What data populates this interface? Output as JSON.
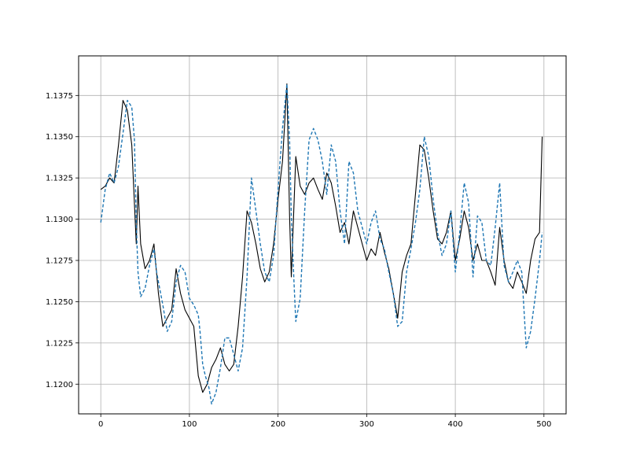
{
  "chart_data": {
    "type": "line",
    "title": "",
    "xlabel": "",
    "ylabel": "",
    "xlim": [
      -25,
      525
    ],
    "ylim": [
      1.1182,
      1.1399
    ],
    "grid": true,
    "x_ticks": [
      0,
      100,
      200,
      300,
      400,
      500
    ],
    "x_tick_labels": [
      "0",
      "100",
      "200",
      "300",
      "400",
      "500"
    ],
    "y_ticks": [
      1.12,
      1.1225,
      1.125,
      1.1275,
      1.13,
      1.1325,
      1.135,
      1.1375
    ],
    "y_tick_labels": [
      "1.1200",
      "1.1225",
      "1.1250",
      "1.1275",
      "1.1300",
      "1.1325",
      "1.1350",
      "1.1375"
    ],
    "series": [
      {
        "style": "solid",
        "color": "#000000",
        "x": [
          0,
          5,
          10,
          15,
          20,
          25,
          30,
          35,
          40,
          42,
          45,
          50,
          55,
          60,
          65,
          70,
          75,
          80,
          85,
          90,
          95,
          100,
          105,
          110,
          115,
          120,
          125,
          130,
          135,
          140,
          145,
          150,
          155,
          160,
          165,
          170,
          175,
          180,
          185,
          190,
          195,
          200,
          205,
          210,
          213,
          215,
          220,
          225,
          230,
          235,
          240,
          245,
          250,
          255,
          260,
          265,
          270,
          275,
          280,
          285,
          290,
          295,
          300,
          305,
          310,
          315,
          320,
          325,
          330,
          335,
          340,
          345,
          350,
          355,
          360,
          365,
          370,
          375,
          380,
          385,
          390,
          395,
          400,
          405,
          410,
          415,
          420,
          425,
          430,
          435,
          440,
          445,
          450,
          455,
          460,
          465,
          470,
          475,
          480,
          485,
          490,
          495,
          498
        ],
        "values": [
          1.1318,
          1.132,
          1.1325,
          1.1322,
          1.1345,
          1.1372,
          1.1366,
          1.1345,
          1.1285,
          1.132,
          1.1285,
          1.127,
          1.1275,
          1.1285,
          1.1255,
          1.1235,
          1.124,
          1.1245,
          1.127,
          1.1255,
          1.1245,
          1.124,
          1.1235,
          1.1205,
          1.1195,
          1.12,
          1.121,
          1.1215,
          1.1222,
          1.1212,
          1.1208,
          1.1212,
          1.1235,
          1.1265,
          1.1305,
          1.1298,
          1.1285,
          1.127,
          1.1262,
          1.1268,
          1.1285,
          1.1312,
          1.1335,
          1.1382,
          1.1302,
          1.1265,
          1.1338,
          1.132,
          1.1315,
          1.1322,
          1.1325,
          1.1318,
          1.1312,
          1.1328,
          1.1322,
          1.1308,
          1.1292,
          1.1298,
          1.1285,
          1.1305,
          1.1295,
          1.1285,
          1.1275,
          1.1282,
          1.1278,
          1.1292,
          1.128,
          1.127,
          1.1255,
          1.124,
          1.1268,
          1.1278,
          1.1285,
          1.1315,
          1.1345,
          1.1342,
          1.1325,
          1.1305,
          1.1288,
          1.1285,
          1.1292,
          1.1305,
          1.1275,
          1.1288,
          1.1305,
          1.1295,
          1.1275,
          1.1285,
          1.1275,
          1.1275,
          1.1268,
          1.126,
          1.1295,
          1.1275,
          1.1262,
          1.1258,
          1.1268,
          1.1262,
          1.1255,
          1.1275,
          1.1288,
          1.1292,
          1.135
        ]
      },
      {
        "style": "dashed",
        "color": "#1f77b4",
        "x": [
          0,
          5,
          10,
          15,
          20,
          25,
          30,
          35,
          38,
          40,
          42,
          45,
          50,
          55,
          60,
          63,
          65,
          70,
          75,
          80,
          85,
          90,
          95,
          100,
          105,
          110,
          112,
          115,
          118,
          122,
          125,
          130,
          135,
          140,
          145,
          150,
          155,
          160,
          165,
          170,
          175,
          180,
          185,
          190,
          195,
          200,
          205,
          210,
          213,
          215,
          218,
          220,
          225,
          230,
          235,
          240,
          245,
          250,
          255,
          260,
          265,
          270,
          275,
          280,
          285,
          290,
          295,
          300,
          305,
          310,
          315,
          320,
          325,
          330,
          335,
          340,
          345,
          350,
          355,
          360,
          365,
          370,
          375,
          380,
          385,
          390,
          395,
          400,
          405,
          410,
          415,
          420,
          425,
          430,
          435,
          440,
          445,
          450,
          455,
          460,
          465,
          470,
          475,
          480,
          485,
          490,
          495,
          498
        ],
        "values": [
          1.1298,
          1.1318,
          1.1328,
          1.1322,
          1.1332,
          1.1352,
          1.1372,
          1.1368,
          1.1348,
          1.1298,
          1.1268,
          1.1253,
          1.1258,
          1.1272,
          1.1282,
          1.1268,
          1.1262,
          1.1248,
          1.1232,
          1.1238,
          1.1262,
          1.1272,
          1.1268,
          1.1252,
          1.1248,
          1.1242,
          1.1232,
          1.1212,
          1.1205,
          1.1198,
          1.1188,
          1.1195,
          1.121,
          1.1228,
          1.1228,
          1.1218,
          1.1208,
          1.1222,
          1.1265,
          1.1325,
          1.1305,
          1.1285,
          1.1268,
          1.1262,
          1.1278,
          1.1318,
          1.1355,
          1.1382,
          1.1348,
          1.1302,
          1.1262,
          1.1238,
          1.1252,
          1.1305,
          1.1348,
          1.1355,
          1.1348,
          1.1335,
          1.1315,
          1.1345,
          1.1335,
          1.1305,
          1.1285,
          1.1335,
          1.1328,
          1.1305,
          1.1295,
          1.1285,
          1.1298,
          1.1305,
          1.1288,
          1.1282,
          1.1268,
          1.1255,
          1.1235,
          1.1238,
          1.1268,
          1.1282,
          1.1298,
          1.1318,
          1.135,
          1.1338,
          1.1312,
          1.1292,
          1.1278,
          1.1285,
          1.1305,
          1.1268,
          1.1292,
          1.1322,
          1.131,
          1.1265,
          1.1302,
          1.1298,
          1.1275,
          1.1272,
          1.1295,
          1.1322,
          1.1272,
          1.1262,
          1.1268,
          1.1275,
          1.1268,
          1.1222,
          1.1232,
          1.1252,
          1.1275,
          1.1292
        ]
      }
    ]
  }
}
